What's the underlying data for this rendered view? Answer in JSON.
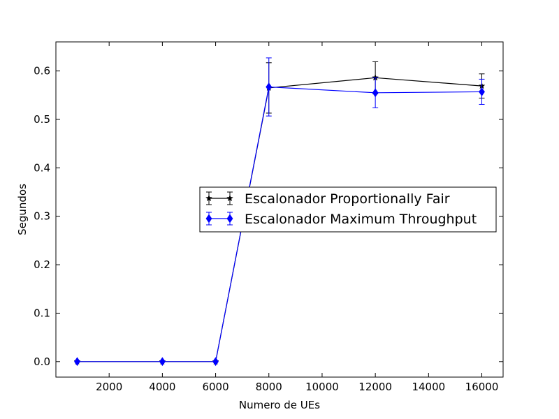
{
  "chart_data": {
    "type": "line",
    "title": "",
    "xlabel": "Numero de UEs",
    "ylabel": "Segundos",
    "xlim": [
      0,
      16800
    ],
    "ylim": [
      -0.032,
      0.66
    ],
    "x_ticks": [
      2000,
      4000,
      6000,
      8000,
      10000,
      12000,
      14000,
      16000
    ],
    "y_ticks": [
      0.0,
      0.1,
      0.2,
      0.3,
      0.4,
      0.5,
      0.6
    ],
    "x_tick_labels": [
      "2000",
      "4000",
      "6000",
      "8000",
      "10000",
      "12000",
      "14000",
      "16000"
    ],
    "y_tick_labels": [
      "0.0",
      "0.1",
      "0.2",
      "0.3",
      "0.4",
      "0.5",
      "0.6"
    ],
    "grid": false,
    "legend_position": "center-right",
    "series": [
      {
        "name": "Escalonador Proportionally Fair",
        "color": "#000000",
        "marker": "star",
        "x": [
          800,
          4000,
          6000,
          8000,
          12000,
          16000
        ],
        "y": [
          0.0,
          0.0,
          0.0,
          0.565,
          0.586,
          0.569
        ],
        "err": [
          0.0,
          0.0,
          0.0,
          0.052,
          0.033,
          0.025
        ]
      },
      {
        "name": "Escalonador Maximum Throughput",
        "color": "#0000ff",
        "marker": "diamond",
        "x": [
          800,
          4000,
          6000,
          8000,
          12000,
          16000
        ],
        "y": [
          0.0,
          0.0,
          0.0,
          0.567,
          0.555,
          0.557
        ],
        "err": [
          0.0,
          0.0,
          0.0,
          0.06,
          0.031,
          0.026
        ]
      }
    ]
  }
}
